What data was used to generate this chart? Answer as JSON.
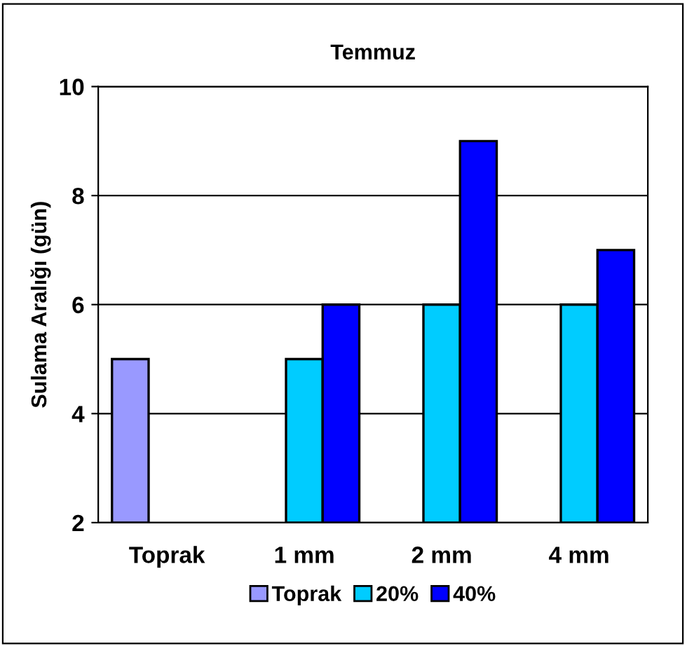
{
  "chart_data": {
    "type": "bar",
    "title": "Temmuz",
    "ylabel": "Sulama Aralığı (gün)",
    "categories": [
      "Toprak",
      "1 mm",
      "2 mm",
      "4 mm"
    ],
    "series": [
      {
        "name": "Toprak",
        "color": "#9999ff",
        "values": [
          5,
          null,
          null,
          null
        ]
      },
      {
        "name": "20%",
        "color": "#00ccff",
        "values": [
          null,
          5,
          6,
          6
        ]
      },
      {
        "name": "40%",
        "color": "#0000ff",
        "values": [
          null,
          6,
          9,
          7
        ]
      }
    ],
    "ylim": [
      2,
      10
    ],
    "yticks": [
      2,
      4,
      6,
      8,
      10
    ],
    "grid": "y",
    "legend": "bottom"
  }
}
